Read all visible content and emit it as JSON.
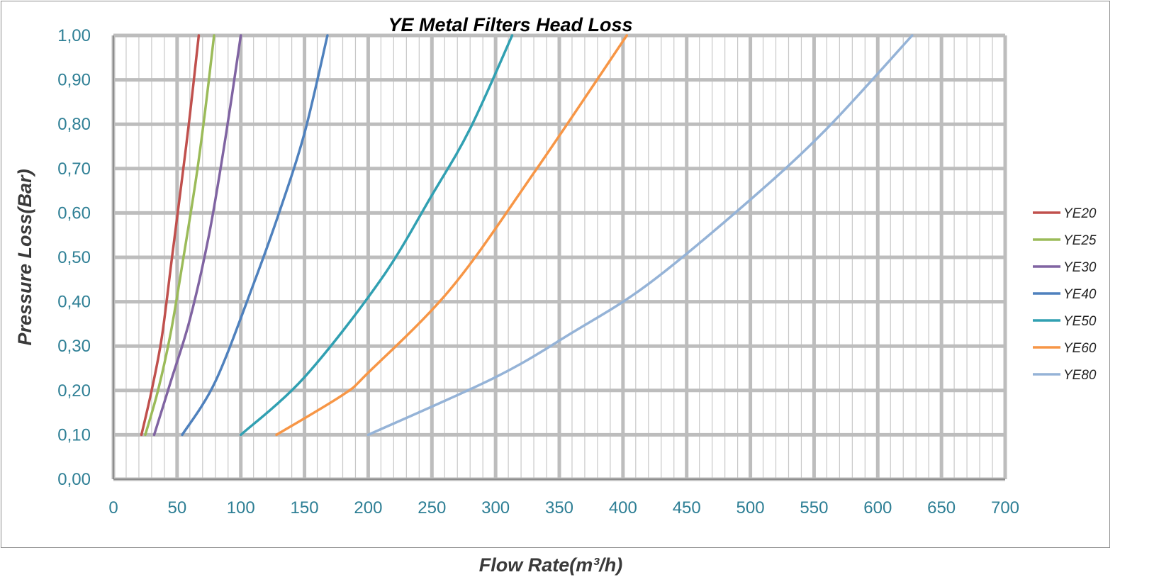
{
  "chart_data": {
    "type": "line",
    "title": "YE Metal Filters Head Loss",
    "xlabel": "Flow Rate(m³/h)",
    "ylabel": "Pressure Loss(Bar)",
    "xlim": [
      0,
      700
    ],
    "ylim": [
      0,
      1.0
    ],
    "x_ticks": [
      0,
      50,
      100,
      150,
      200,
      250,
      300,
      350,
      400,
      450,
      500,
      550,
      600,
      650,
      700
    ],
    "x_tick_labels": [
      "0",
      "50",
      "100",
      "150",
      "200",
      "250",
      "300",
      "350",
      "400",
      "450",
      "500",
      "550",
      "600",
      "650",
      "700"
    ],
    "y_ticks": [
      0,
      0.1,
      0.2,
      0.3,
      0.4,
      0.5,
      0.6,
      0.7,
      0.8,
      0.9,
      1.0
    ],
    "y_tick_labels": [
      "0,00",
      "0,10",
      "0,20",
      "0,30",
      "0,40",
      "0,50",
      "0,60",
      "0,70",
      "0,80",
      "0,90",
      "1,00"
    ],
    "grid": true,
    "legend_position": "right",
    "series": [
      {
        "name": "YE20",
        "color": "#c0504d",
        "x": [
          22,
          30,
          38,
          46,
          54,
          60,
          67
        ],
        "y": [
          0.1,
          0.2,
          0.32,
          0.5,
          0.68,
          0.82,
          1.0
        ]
      },
      {
        "name": "YE25",
        "color": "#9bbb59",
        "x": [
          25,
          35,
          45,
          55,
          65,
          72,
          79
        ],
        "y": [
          0.1,
          0.2,
          0.33,
          0.5,
          0.68,
          0.83,
          1.0
        ]
      },
      {
        "name": "YE30",
        "color": "#8064a2",
        "x": [
          32,
          45,
          60,
          75,
          88,
          100
        ],
        "y": [
          0.1,
          0.22,
          0.36,
          0.55,
          0.77,
          1.0
        ]
      },
      {
        "name": "YE40",
        "color": "#4f81bd",
        "x": [
          54,
          80,
          110,
          130,
          150,
          168
        ],
        "y": [
          0.1,
          0.22,
          0.44,
          0.6,
          0.78,
          1.0
        ]
      },
      {
        "name": "YE50",
        "color": "#31a0b2",
        "x": [
          100,
          150,
          210,
          250,
          280,
          313
        ],
        "y": [
          0.1,
          0.23,
          0.45,
          0.64,
          0.79,
          1.0
        ]
      },
      {
        "name": "YE60",
        "color": "#f79646",
        "x": [
          128,
          180,
          200,
          265,
          330,
          403
        ],
        "y": [
          0.1,
          0.19,
          0.24,
          0.43,
          0.69,
          1.0
        ]
      },
      {
        "name": "YE80",
        "color": "#95b3d7",
        "x": [
          200,
          300,
          360,
          420,
          500,
          560,
          627
        ],
        "y": [
          0.1,
          0.23,
          0.33,
          0.44,
          0.63,
          0.79,
          1.0
        ]
      }
    ]
  }
}
